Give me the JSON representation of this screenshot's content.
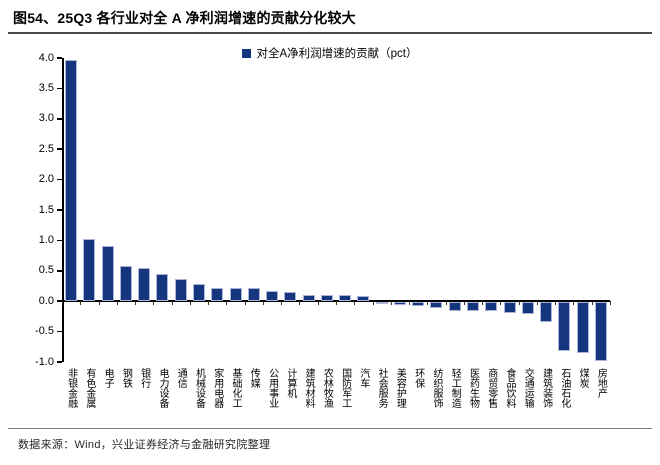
{
  "title": "图54、25Q3 各行业对全 A 净利润增速的贡献分化较大",
  "footer": "数据来源：Wind，兴业证券经济与金融研究院整理",
  "colors": {
    "bar_fill": "#16357f",
    "bar_border": "#a9b4d6",
    "axis": "#000000",
    "title_rule": "#4a4a4a",
    "footer_rule": "#7f7f7f"
  },
  "chart_data": {
    "type": "bar",
    "title": "图54、25Q3 各行业对全 A 净利润增速的贡献分化较大",
    "legend": [
      "对全A净利润增速的贡献（pct）"
    ],
    "legend_position": "top-center",
    "grid": false,
    "ylim": [
      -1.0,
      4.0
    ],
    "yticks": [
      "4.0",
      "3.5",
      "3.0",
      "2.5",
      "2.0",
      "1.5",
      "1.0",
      "0.5",
      "0.0",
      "-0.5",
      "-1.0"
    ],
    "xlabel": "",
    "ylabel": "",
    "categories": [
      "非银金融",
      "有色金属",
      "电子",
      "钢铁",
      "银行",
      "电力设备",
      "通信",
      "机械设备",
      "家用电器",
      "基础化工",
      "传媒",
      "公用事业",
      "计算机",
      "建筑材料",
      "农林牧渔",
      "国防军工",
      "汽车",
      "社会服务",
      "美容护理",
      "环保",
      "纺织服饰",
      "轻工制造",
      "医药生物",
      "商贸零售",
      "食品饮料",
      "交通运输",
      "建筑装饰",
      "石油石化",
      "煤炭",
      "房地产"
    ],
    "values": [
      3.97,
      1.02,
      0.9,
      0.58,
      0.55,
      0.45,
      0.37,
      0.29,
      0.22,
      0.21,
      0.21,
      0.16,
      0.15,
      0.11,
      0.1,
      0.1,
      0.09,
      -0.02,
      -0.04,
      -0.07,
      -0.1,
      -0.14,
      -0.15,
      -0.15,
      -0.17,
      -0.2,
      -0.32,
      -0.81,
      -0.84,
      -0.97
    ]
  }
}
